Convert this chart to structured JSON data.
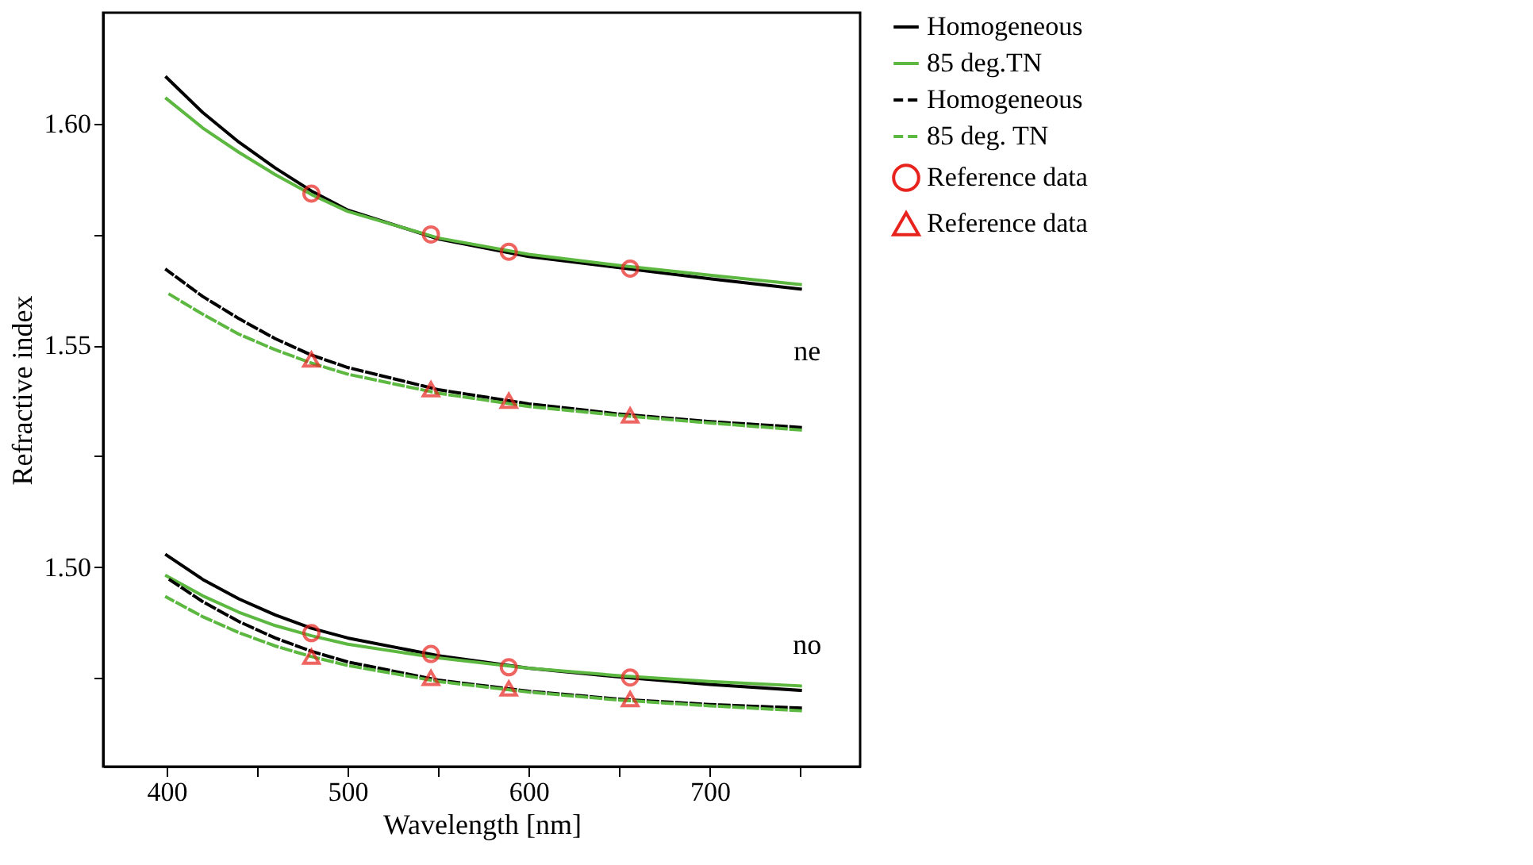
{
  "chart_data": {
    "type": "line",
    "xlabel": "Wavelength [nm]",
    "ylabel": "Refractive index",
    "x": [
      400,
      420,
      440,
      460,
      480,
      500,
      550,
      600,
      650,
      700,
      750
    ],
    "series": [
      {
        "name": "Homogeneous",
        "color": "#000000",
        "line_style": "solid",
        "values": [
          1.6104,
          1.6025,
          1.5958,
          1.59,
          1.5848,
          1.5805,
          1.574,
          1.57,
          1.5675,
          1.565,
          1.5627
        ]
      },
      {
        "name": "85 deg.TN",
        "color": "#5cb840",
        "line_style": "solid",
        "values": [
          1.6056,
          1.599,
          1.5935,
          1.5885,
          1.584,
          1.5802,
          1.5742,
          1.5705,
          1.568,
          1.5658,
          1.5637
        ]
      },
      {
        "name": "Homogeneous",
        "color": "#000000",
        "line_style": "dashed",
        "values": [
          1.567,
          1.561,
          1.556,
          1.5515,
          1.5478,
          1.545,
          1.54,
          1.5368,
          1.5345,
          1.5328,
          1.5315
        ]
      },
      {
        "name": "85 deg. TN",
        "color": "#5cb840",
        "line_style": "dashed",
        "values": [
          1.5619,
          1.557,
          1.5525,
          1.549,
          1.546,
          1.5435,
          1.5392,
          1.5362,
          1.5342,
          1.5325,
          1.5309
        ]
      },
      {
        "color": "#000000",
        "line_style": "solid",
        "values": [
          1.5027,
          1.4972,
          1.4928,
          1.4892,
          1.4862,
          1.484,
          1.48,
          1.4772,
          1.4752,
          1.4735,
          1.4722
        ]
      },
      {
        "color": "#5cb840",
        "line_style": "solid",
        "values": [
          1.498,
          1.4935,
          1.4898,
          1.4868,
          1.4845,
          1.4826,
          1.4795,
          1.4772,
          1.4755,
          1.4742,
          1.4732
        ]
      },
      {
        "color": "#000000",
        "line_style": "dashed",
        "values": [
          1.4976,
          1.4922,
          1.4877,
          1.484,
          1.481,
          1.4786,
          1.4745,
          1.472,
          1.4702,
          1.469,
          1.4682
        ]
      },
      {
        "color": "#5cb840",
        "line_style": "dashed",
        "values": [
          1.4932,
          1.4888,
          1.4852,
          1.4822,
          1.4798,
          1.4778,
          1.4742,
          1.4718,
          1.47,
          1.4687,
          1.4676
        ]
      },
      {
        "name": "Reference data",
        "type": "scatter",
        "marker": "circle",
        "color": "#e8231e",
        "x": [
          480,
          546,
          589,
          656,
          480,
          546,
          589,
          656
        ],
        "values": [
          1.5842,
          1.575,
          1.5711,
          1.5673,
          1.4851,
          1.4804,
          1.4774,
          1.4751
        ]
      },
      {
        "name": "Reference data",
        "type": "scatter",
        "marker": "triangle",
        "color": "#e8231e",
        "x": [
          480,
          546,
          589,
          656,
          480,
          546,
          589,
          656
        ],
        "values": [
          1.5468,
          1.5401,
          1.5375,
          1.5342,
          1.4798,
          1.475,
          1.4726,
          1.4702
        ]
      }
    ],
    "annotations": [
      "ne",
      "no"
    ],
    "xlim": [
      365,
      783
    ],
    "ylim": [
      1.455,
      1.625
    ],
    "xticks": [
      400,
      {
        "value": 450,
        "label": null
      },
      500,
      {
        "value": 550,
        "label": null
      },
      600,
      {
        "value": 650,
        "label": null
      },
      700,
      {
        "value": 750,
        "label": null
      }
    ],
    "yticks": [
      {
        "value": 1.475,
        "label": null
      },
      {
        "value": 1.5,
        "label": "1.50"
      },
      {
        "value": 1.525,
        "label": null
      },
      {
        "value": 1.55,
        "label": "1.55"
      },
      {
        "value": 1.575,
        "label": null
      },
      {
        "value": 1.6,
        "label": "1.60"
      }
    ],
    "grid": false,
    "legend": "right"
  }
}
